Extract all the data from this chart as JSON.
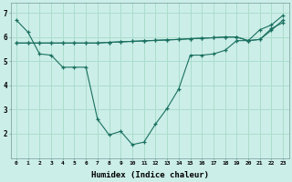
{
  "background_color": "#cceee8",
  "grid_color": "#aaddcc",
  "line_color": "#1a7060",
  "xlabel": "Humidex (Indice chaleur)",
  "xlim": [
    -0.5,
    23.5
  ],
  "ylim": [
    1.0,
    7.4
  ],
  "yticks": [
    2,
    3,
    4,
    5,
    6,
    7
  ],
  "xticks": [
    0,
    1,
    2,
    3,
    4,
    5,
    6,
    7,
    8,
    9,
    10,
    11,
    12,
    13,
    14,
    15,
    16,
    17,
    18,
    19,
    20,
    21,
    22,
    23
  ],
  "line1_x": [
    0,
    1,
    2,
    3,
    4,
    5,
    6,
    7,
    8,
    9,
    10,
    11,
    12,
    13,
    14,
    15,
    16,
    17,
    18,
    19,
    20,
    21,
    22,
    23
  ],
  "line1_y": [
    6.7,
    6.2,
    5.3,
    5.25,
    4.75,
    4.75,
    4.75,
    2.6,
    1.95,
    2.1,
    1.55,
    1.65,
    2.4,
    3.05,
    3.85,
    5.25,
    5.25,
    5.3,
    5.45,
    5.85,
    5.85,
    6.3,
    6.5,
    6.9
  ],
  "line2_x": [
    0,
    1,
    2,
    3,
    4,
    5,
    6,
    7,
    8,
    9,
    10,
    11,
    12,
    13,
    14,
    15,
    16,
    17,
    18,
    19,
    20,
    21,
    22,
    23
  ],
  "line2_y": [
    5.75,
    5.75,
    5.75,
    5.75,
    5.75,
    5.75,
    5.75,
    5.75,
    5.78,
    5.8,
    5.82,
    5.84,
    5.86,
    5.88,
    5.9,
    5.93,
    5.95,
    5.97,
    6.0,
    6.0,
    5.85,
    5.9,
    6.35,
    6.6
  ],
  "line3_x": [
    0,
    1,
    2,
    3,
    4,
    5,
    6,
    7,
    8,
    9,
    10,
    11,
    12,
    13,
    14,
    15,
    16,
    17,
    18,
    19,
    20,
    21,
    22,
    23
  ],
  "line3_y": [
    5.75,
    5.75,
    5.75,
    5.75,
    5.75,
    5.75,
    5.75,
    5.75,
    5.78,
    5.8,
    5.82,
    5.84,
    5.86,
    5.88,
    5.9,
    5.93,
    5.95,
    5.97,
    6.0,
    6.0,
    5.85,
    5.9,
    6.28,
    6.7
  ]
}
